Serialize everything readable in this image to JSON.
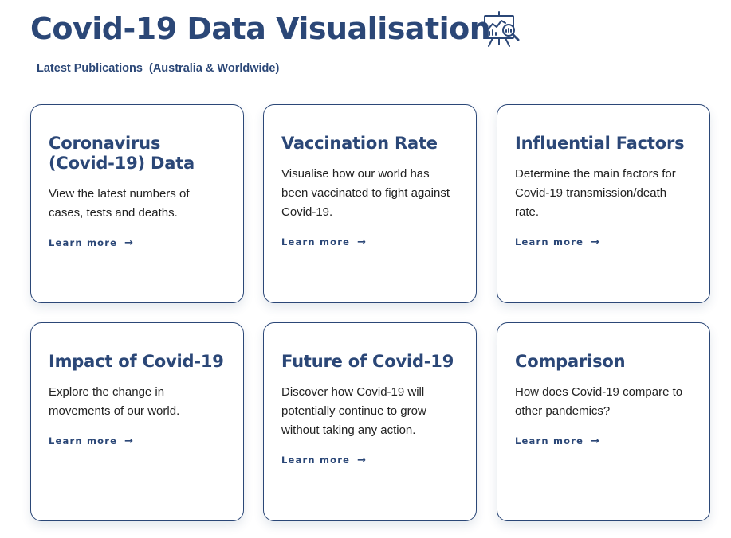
{
  "header": {
    "title": "Covid-19 Data Visualisation",
    "icon": "presentation-chart-magnifier-icon"
  },
  "subtitle": "Latest Publications  (Australia & Worldwide)",
  "cards": [
    {
      "title": "Coronavirus (Covid-19) Data",
      "description": "View the latest numbers of cases, tests and deaths.",
      "link": "Learn more"
    },
    {
      "title": "Vaccination Rate",
      "description": "Visualise how our world has been vaccinated to fight against Covid-19.",
      "link": "Learn more"
    },
    {
      "title": "Influential Factors",
      "description": "Determine the main factors for Covid-19 transmission/death rate.",
      "link": "Learn more"
    },
    {
      "title": "Impact of Covid-19",
      "description": "Explore the change in movements of our world.",
      "link": "Learn more"
    },
    {
      "title": "Future of Covid-19",
      "description": "Discover how Covid-19 will potentially continue to grow without taking any action.",
      "link": "Learn more"
    },
    {
      "title": "Comparison",
      "description": "How does Covid-19 compare to other pandemics?",
      "link": "Learn more"
    }
  ],
  "colors": {
    "primary": "#2b4777",
    "text": "#222222"
  }
}
